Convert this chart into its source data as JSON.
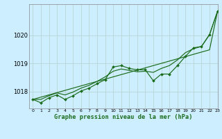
{
  "title": "Graphe pression niveau de la mer (hPa)",
  "bg_color": "#cceeff",
  "grid_color": "#b8d4d4",
  "line_color": "#1a6b1a",
  "marker_color": "#1a6b1a",
  "xlim": [
    -0.5,
    23
  ],
  "ylim": [
    1017.4,
    1021.1
  ],
  "yticks": [
    1018,
    1019,
    1020
  ],
  "xticks": [
    0,
    1,
    2,
    3,
    4,
    5,
    6,
    7,
    8,
    9,
    10,
    11,
    12,
    13,
    14,
    15,
    16,
    17,
    18,
    19,
    20,
    21,
    22,
    23
  ],
  "hours": [
    0,
    1,
    2,
    3,
    4,
    5,
    6,
    7,
    8,
    9,
    10,
    11,
    12,
    13,
    14,
    15,
    16,
    17,
    18,
    19,
    20,
    21,
    22,
    23
  ],
  "pressure_main": [
    1017.72,
    1017.6,
    1017.78,
    1017.88,
    1017.72,
    1017.85,
    1018.02,
    1018.12,
    1018.28,
    1018.42,
    1018.87,
    1018.92,
    1018.82,
    1018.77,
    1018.77,
    1018.38,
    1018.62,
    1018.62,
    1018.92,
    1019.25,
    1019.55,
    1019.6,
    1020.02,
    1020.85
  ],
  "pressure_smooth": [
    1017.72,
    1017.72,
    1017.85,
    1017.95,
    1017.88,
    1017.98,
    1018.12,
    1018.22,
    1018.36,
    1018.52,
    1018.72,
    1018.8,
    1018.75,
    1018.7,
    1018.72,
    1018.68,
    1018.82,
    1018.92,
    1019.12,
    1019.38,
    1019.52,
    1019.6,
    1020.02,
    1020.85
  ],
  "pressure_linear": [
    1017.72,
    1017.8,
    1017.88,
    1017.96,
    1018.04,
    1018.12,
    1018.2,
    1018.28,
    1018.36,
    1018.44,
    1018.52,
    1018.6,
    1018.68,
    1018.76,
    1018.84,
    1018.92,
    1019.0,
    1019.08,
    1019.16,
    1019.24,
    1019.32,
    1019.4,
    1019.48,
    1020.85
  ]
}
